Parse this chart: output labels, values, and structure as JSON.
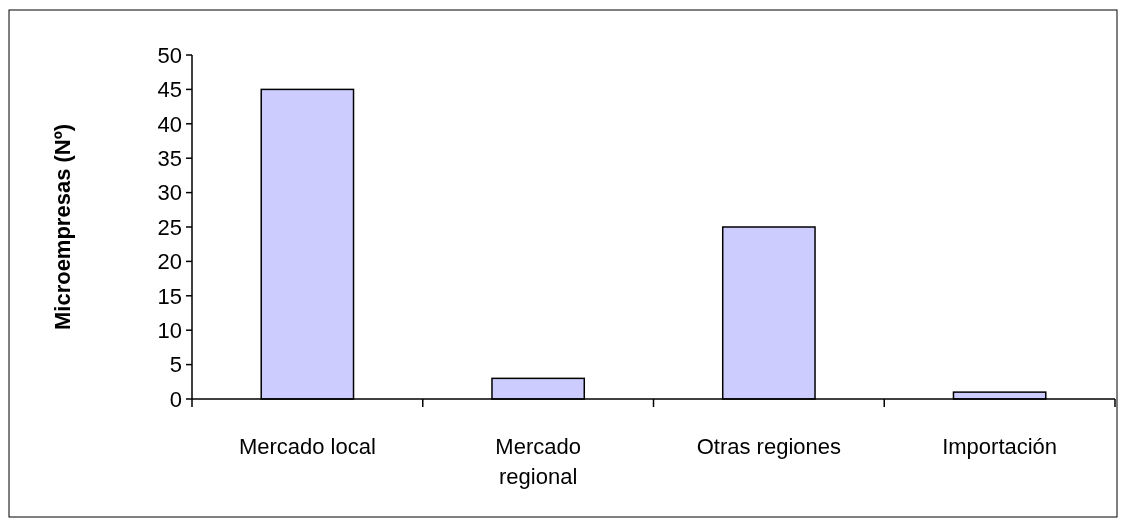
{
  "chart_data": {
    "type": "bar",
    "ylabel": "Microempresas (Nº)",
    "categories": [
      "Mercado local",
      "Mercado regional",
      "Otras regiones",
      "Importación"
    ],
    "values": [
      45,
      3,
      25,
      1
    ],
    "color": "#ccccff",
    "ylim": [
      0,
      50
    ],
    "yticks": [
      0,
      5,
      10,
      15,
      20,
      25,
      30,
      35,
      40,
      45,
      50
    ],
    "grid": false
  }
}
